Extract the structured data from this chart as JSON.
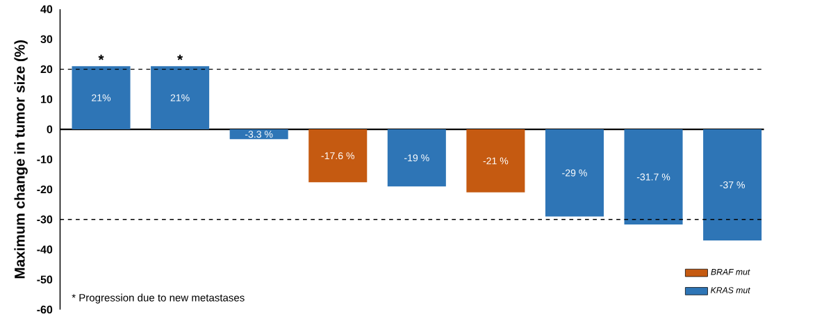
{
  "chart_data": {
    "type": "bar",
    "ylabel": "Maximum change in tumor size (%)",
    "categories": [
      null,
      null,
      null,
      null,
      null,
      null,
      null,
      null,
      null
    ],
    "series": [
      {
        "name": "BRAF mut",
        "color": "#c55a11",
        "values": [
          null,
          null,
          null,
          -17.6,
          null,
          -21,
          null,
          null,
          null
        ],
        "value_labels": [
          null,
          null,
          null,
          "-17.6 %",
          null,
          "-21 %",
          null,
          null,
          null
        ]
      },
      {
        "name": "KRAS mut",
        "color": "#2e75b6",
        "values": [
          21,
          21,
          -3.3,
          null,
          -19,
          null,
          -29,
          -31.7,
          -37
        ],
        "value_labels": [
          "21%",
          "21%",
          "-3.3 %",
          null,
          "-19 %",
          null,
          "-29 %",
          "-31.7 %",
          "-37 %"
        ]
      }
    ],
    "ylim": [
      -60,
      40
    ],
    "yticks": [
      -60,
      -50,
      -40,
      -30,
      -20,
      -10,
      0,
      10,
      20,
      30,
      40
    ],
    "ref_lines": [
      {
        "axis": "y",
        "value": 20,
        "line_style": "dashed"
      },
      {
        "axis": "y",
        "value": -30,
        "line_style": "dashed"
      }
    ],
    "annotations": [
      {
        "text": "*",
        "y": 21
      },
      {
        "text": "*",
        "y": 21
      },
      "* Progression due to new metastases"
    ],
    "legend": "bottom right",
    "grid": false
  }
}
